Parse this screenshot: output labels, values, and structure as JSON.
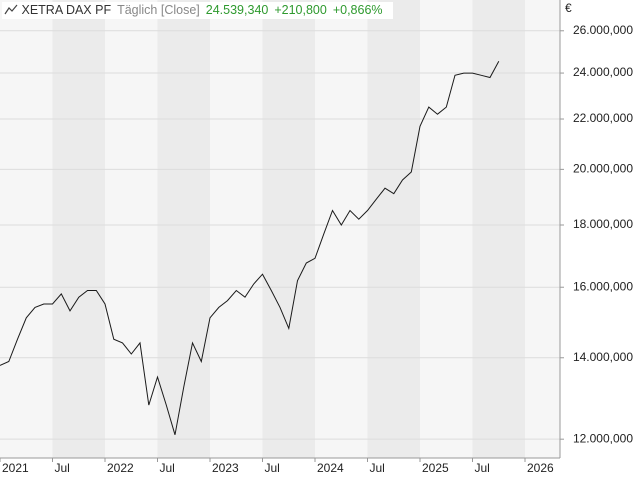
{
  "chart_data": {
    "type": "line",
    "title": "XETRA DAX PF",
    "subtitle": "Täglich [Close]",
    "last_value": {
      "value": 24539.34,
      "label": "24.539,340"
    },
    "change": {
      "value": 210.8,
      "label": "+210,800"
    },
    "change_pct": {
      "value": 0.866,
      "label": "+0,866%"
    },
    "y_label": "€",
    "log_scale": true,
    "grid": true,
    "color": "#1a1a1a",
    "x": [
      "2021-01",
      "2021-02",
      "2021-03",
      "2021-04",
      "2021-05",
      "2021-06",
      "2021-07",
      "2021-08",
      "2021-09",
      "2021-10",
      "2021-11",
      "2021-12",
      "2022-01",
      "2022-02",
      "2022-03",
      "2022-04",
      "2022-05",
      "2022-06",
      "2022-07",
      "2022-08",
      "2022-09",
      "2022-10",
      "2022-11",
      "2022-12",
      "2023-01",
      "2023-02",
      "2023-03",
      "2023-04",
      "2023-05",
      "2023-06",
      "2023-07",
      "2023-08",
      "2023-09",
      "2023-10",
      "2023-11",
      "2023-12",
      "2024-01",
      "2024-02",
      "2024-03",
      "2024-04",
      "2024-05",
      "2024-06",
      "2024-07",
      "2024-08",
      "2024-09",
      "2024-10",
      "2024-11",
      "2024-12",
      "2025-01",
      "2025-02",
      "2025-03",
      "2025-04",
      "2025-05",
      "2025-06",
      "2025-07",
      "2025-08",
      "2025-09",
      "2025-10"
    ],
    "values": [
      13800,
      13900,
      14500,
      15100,
      15400,
      15500,
      15500,
      15800,
      15300,
      15700,
      15900,
      15900,
      15500,
      14500,
      14400,
      14100,
      14400,
      12800,
      13500,
      12800,
      12100,
      13250,
      14400,
      13900,
      15100,
      15400,
      15600,
      15900,
      15700,
      16100,
      16400,
      15900,
      15400,
      14800,
      16200,
      16750,
      16900,
      17700,
      18500,
      18000,
      18500,
      18200,
      18500,
      18900,
      19300,
      19100,
      19600,
      19900,
      21700,
      22500,
      22200,
      22500,
      23900,
      24000,
      24000,
      23900,
      23800,
      24539.34
    ],
    "xlim": [
      "2021-01",
      "2026-05"
    ],
    "xticks": [
      {
        "value": "2021-01",
        "label": "2021"
      },
      {
        "value": "2021-07",
        "label": "Jul"
      },
      {
        "value": "2022-01",
        "label": "2022"
      },
      {
        "value": "2022-07",
        "label": "Jul"
      },
      {
        "value": "2023-01",
        "label": "2023"
      },
      {
        "value": "2023-07",
        "label": "Jul"
      },
      {
        "value": "2024-01",
        "label": "2024"
      },
      {
        "value": "2024-07",
        "label": "Jul"
      },
      {
        "value": "2025-01",
        "label": "2025"
      },
      {
        "value": "2025-07",
        "label": "Jul"
      },
      {
        "value": "2026-01",
        "label": "2026"
      }
    ],
    "ylim": [
      11580,
      27560
    ],
    "yticks": [
      {
        "value": 12000,
        "label": "12.000,000"
      },
      {
        "value": 14000,
        "label": "14.000,000"
      },
      {
        "value": 16000,
        "label": "16.000,000"
      },
      {
        "value": 18000,
        "label": "18.000,000"
      },
      {
        "value": 20000,
        "label": "20.000,000"
      },
      {
        "value": 22000,
        "label": "22.000,000"
      },
      {
        "value": 24000,
        "label": "24.000,000"
      },
      {
        "value": 26000,
        "label": "26.000,000"
      }
    ]
  }
}
